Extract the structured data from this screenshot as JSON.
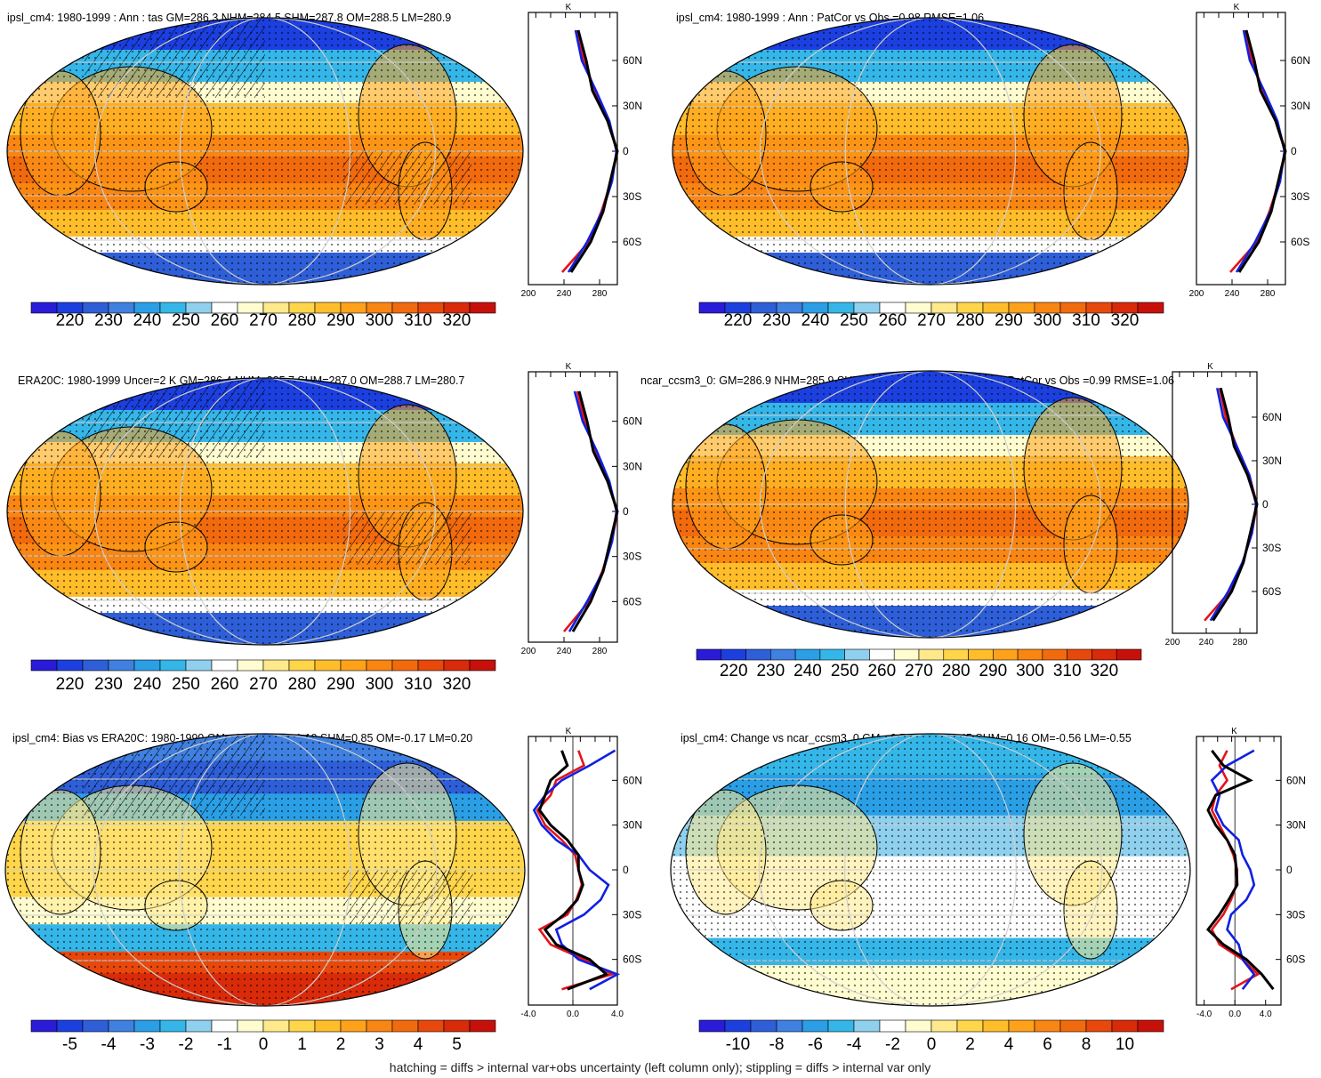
{
  "footnote": "hatching = diffs > internal var+obs uncertainty (left column only); stippling = diffs > internal var only",
  "colors": {
    "temperature_scale": [
      "#2a1bd9",
      "#1c3fe0",
      "#2e5fd8",
      "#3f80e0",
      "#2a9fe6",
      "#35b6e8",
      "#8fd0ee",
      "#ffffff",
      "#fffcd0",
      "#ffe98a",
      "#ffd54a",
      "#ffbd2a",
      "#ffa21a",
      "#f98512",
      "#f26a0e",
      "#e8480c",
      "#d92a0a",
      "#c8100a"
    ],
    "bias_scale": [
      "#2a1bd9",
      "#1c3fe0",
      "#2e5fd8",
      "#3f80e0",
      "#2a9fe6",
      "#35b6e8",
      "#8fd0ee",
      "#ffffff",
      "#fffcd0",
      "#ffe98a",
      "#ffd54a",
      "#ffbd2a",
      "#ffa21a",
      "#f98512",
      "#f26a0e",
      "#e8480c",
      "#d92a0a",
      "#c8100a"
    ],
    "profile_model": "#000000",
    "profile_obs_a": "#e3141a",
    "profile_obs_b": "#1020e0",
    "map_ocean": "#f0a030"
  },
  "chart_data": [
    {
      "type": "heatmap",
      "title": "ipsl_cm4: 1980-1999 : Ann : tas GM=286.3 NHM=284.5 SHM=287.8 OM=288.5 LM=280.9",
      "colorbar_ticks": [
        "220",
        "230",
        "240",
        "250",
        "260",
        "270",
        "280",
        "290",
        "300",
        "310",
        "320"
      ],
      "profile": {
        "units": "K",
        "lat_ticks": [
          "60N",
          "30N",
          "0",
          "30S",
          "60S"
        ],
        "x_ticks": [
          "200",
          "240",
          "280"
        ],
        "xlim": [
          200,
          300
        ],
        "lat": [
          80,
          60,
          40,
          20,
          0,
          -20,
          -40,
          -60,
          -80
        ],
        "series": [
          {
            "values": [
              255,
              262,
              275,
              290,
              300,
              293,
              282,
              268,
              238
            ]
          },
          {
            "values": [
              253,
              260,
              276,
              291,
              299,
              294,
              283,
              266,
              245
            ]
          },
          {
            "values": [
              256,
              265,
              272,
              289,
              300,
              292,
              284,
              270,
              248
            ]
          }
        ]
      }
    },
    {
      "type": "heatmap",
      "title": "ipsl_cm4: 1980-1999 : Ann : PatCor vs Obs =0.98 RMSE=1.06",
      "colorbar_ticks": [
        "220",
        "230",
        "240",
        "250",
        "260",
        "270",
        "280",
        "290",
        "300",
        "310",
        "320"
      ],
      "profile": {
        "units": "K",
        "lat_ticks": [
          "60N",
          "30N",
          "0",
          "30S",
          "60S"
        ],
        "x_ticks": [
          "200",
          "240",
          "280"
        ],
        "xlim": [
          200,
          300
        ],
        "lat": [
          80,
          60,
          40,
          20,
          0,
          -20,
          -40,
          -60,
          -80
        ],
        "series": [
          {
            "values": [
              255,
              262,
              275,
              290,
              300,
              293,
              282,
              268,
              238
            ]
          },
          {
            "values": [
              253,
              260,
              276,
              291,
              299,
              294,
              283,
              266,
              245
            ]
          },
          {
            "values": [
              256,
              265,
              272,
              289,
              300,
              292,
              284,
              270,
              248
            ]
          }
        ]
      }
    },
    {
      "type": "heatmap",
      "title": "ERA20C: 1980-1999 Uncer=2 K GM=286.4 NHM=285.7 SHM=287.0 OM=288.7 LM=280.7",
      "colorbar_ticks": [
        "220",
        "230",
        "240",
        "250",
        "260",
        "270",
        "280",
        "290",
        "300",
        "310",
        "320"
      ],
      "profile": {
        "units": "K",
        "lat_ticks": [
          "60N",
          "30N",
          "0",
          "30S",
          "60S"
        ],
        "x_ticks": [
          "200",
          "240",
          "280"
        ],
        "xlim": [
          200,
          300
        ],
        "lat": [
          80,
          60,
          40,
          20,
          0,
          -20,
          -40,
          -60,
          -80
        ],
        "series": [
          {
            "values": [
              255,
              263,
              276,
              290,
              300,
              294,
              283,
              268,
              240
            ]
          },
          {
            "values": [
              252,
              261,
              277,
              291,
              299,
              294,
              284,
              266,
              246
            ]
          },
          {
            "values": [
              257,
              266,
              273,
              289,
              300,
              292,
              284,
              270,
              250
            ]
          }
        ]
      }
    },
    {
      "type": "heatmap",
      "title": "ncar_ccsm3_0: GM=286.9 NHM=285.9 SHM=287.7 OM=289.1 LM=281.4 PatCor vs Obs =0.99 RMSE=1.06",
      "colorbar_ticks": [
        "220",
        "230",
        "240",
        "250",
        "260",
        "270",
        "280",
        "290",
        "300",
        "310",
        "320"
      ],
      "profile": {
        "units": "K",
        "lat_ticks": [
          "60N",
          "30N",
          "0",
          "30S",
          "60S"
        ],
        "x_ticks": [
          "200",
          "240",
          "280"
        ],
        "xlim": [
          200,
          300
        ],
        "lat": [
          80,
          60,
          40,
          20,
          0,
          -20,
          -40,
          -60,
          -80
        ],
        "series": [
          {
            "values": [
              256,
              263,
              276,
              291,
              300,
              294,
              283,
              268,
              238
            ]
          },
          {
            "values": [
              253,
              260,
              276,
              291,
              299,
              294,
              283,
              266,
              245
            ]
          },
          {
            "values": [
              257,
              266,
              273,
              289,
              300,
              292,
              284,
              270,
              248
            ]
          }
        ]
      }
    },
    {
      "type": "heatmap",
      "title": "ipsl_cm4: Bias vs ERA20C: 1980-1999 GM=-0.07 NHM=-1.19 SHM=0.85 OM=-0.17 LM=0.20",
      "colorbar_ticks": [
        "-5",
        "-4",
        "-3",
        "-2",
        "-1",
        "0",
        "1",
        "2",
        "3",
        "4",
        "5"
      ],
      "profile": {
        "units": "K",
        "lat_ticks": [
          "60N",
          "30N",
          "0",
          "30S",
          "60S"
        ],
        "x_ticks": [
          "-4.0",
          "0.0",
          "4.0"
        ],
        "xlim": [
          -4,
          4
        ],
        "lat": [
          80,
          70,
          60,
          50,
          40,
          30,
          20,
          10,
          0,
          -10,
          -20,
          -30,
          -40,
          -50,
          -60,
          -70,
          -80
        ],
        "series": [
          {
            "values": [
              0.5,
              1.0,
              -1.5,
              -2.0,
              -3.2,
              -2.5,
              -1.0,
              0.2,
              0.5,
              0.8,
              0.3,
              -0.5,
              -3.0,
              -2.0,
              1.0,
              3.5,
              -1.0
            ]
          },
          {
            "values": [
              3.8,
              1.5,
              -1.0,
              -2.5,
              -3.5,
              -2.8,
              -1.5,
              0.5,
              1.5,
              3.2,
              2.5,
              1.0,
              -1.5,
              -1.0,
              0.5,
              4.0,
              1.5
            ]
          },
          {
            "values": [
              -1.0,
              -0.5,
              -2.0,
              -2.5,
              -3.0,
              -2.0,
              -0.5,
              0.5,
              0.5,
              0.9,
              0.4,
              -0.8,
              -2.5,
              -1.5,
              1.5,
              3.0,
              -0.5
            ]
          }
        ]
      }
    },
    {
      "type": "heatmap",
      "title": "ipsl_cm4: Change vs ncar_ccsm3_0 GM=-0.56 NHM=-1.45 SHM=0.16 OM=-0.56 LM=-0.55",
      "colorbar_ticks": [
        "-10",
        "-8",
        "-6",
        "-4",
        "-2",
        "0",
        "2",
        "4",
        "6",
        "8",
        "10"
      ],
      "profile": {
        "units": "K",
        "lat_ticks": [
          "60N",
          "30N",
          "0",
          "30S",
          "60S"
        ],
        "x_ticks": [
          "-4.0",
          "0.0",
          "4.0"
        ],
        "xlim": [
          -5,
          6
        ],
        "lat": [
          80,
          70,
          60,
          50,
          40,
          30,
          20,
          10,
          0,
          -10,
          -20,
          -30,
          -40,
          -50,
          -60,
          -70,
          -80
        ],
        "series": [
          {
            "values": [
              -1.0,
              -2.0,
              -1.0,
              -2.5,
              -3.0,
              -2.0,
              -1.0,
              -0.2,
              0.3,
              0.2,
              -0.5,
              -1.5,
              -3.0,
              -2.0,
              1.0,
              3.0,
              -0.5
            ]
          },
          {
            "values": [
              2.5,
              -1.0,
              -3.0,
              -2.0,
              -2.5,
              -1.5,
              0.5,
              1.0,
              2.0,
              2.5,
              1.5,
              -0.5,
              -1.0,
              0.5,
              1.0,
              2.5,
              1.0
            ]
          },
          {
            "values": [
              -3.0,
              -1.5,
              2.0,
              -2.5,
              -3.5,
              -2.5,
              -1.0,
              0.0,
              0.2,
              0.3,
              -0.8,
              -2.0,
              -3.5,
              -1.5,
              1.5,
              3.5,
              5.0
            ]
          }
        ]
      }
    }
  ]
}
